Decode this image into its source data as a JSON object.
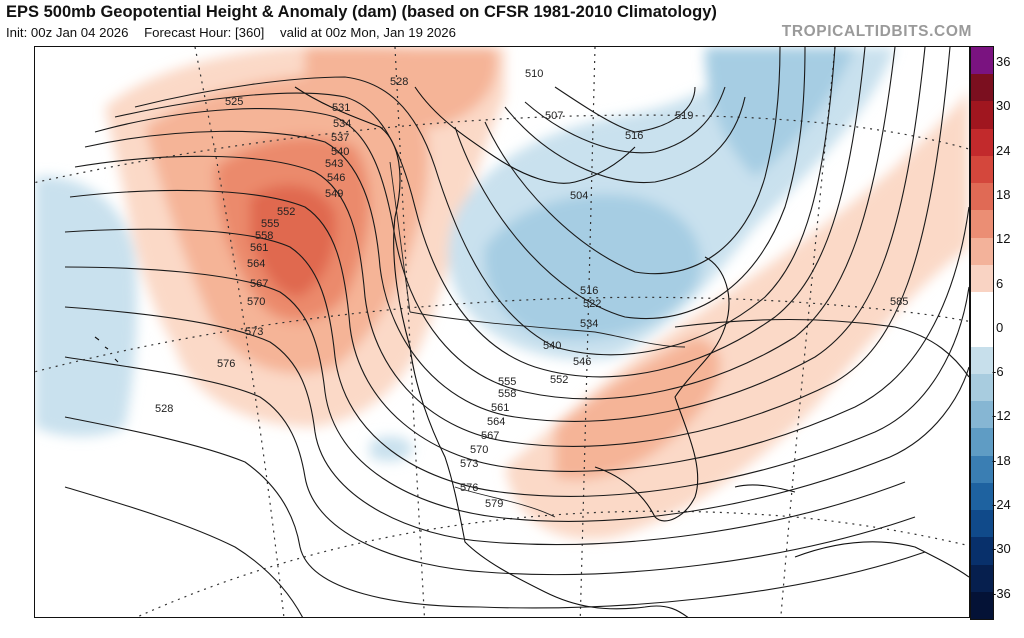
{
  "header": {
    "title": "EPS 500mb Geopotential Height & Anomaly (dam) (based on CFSR 1981-2010 Climatology)",
    "init": "Init: 00z Jan 04 2026",
    "forecast_hour": "Forecast Hour: [360]",
    "valid": "valid at 00z Mon, Jan 19 2026",
    "watermark": "TROPICALTIDBITS.COM"
  },
  "colorbar": {
    "tick_labels": [
      "36",
      "30",
      "24",
      "18",
      "12",
      "6",
      "0",
      "-6",
      "-12",
      "-18",
      "-24",
      "-30",
      "-36"
    ],
    "colors": [
      "#7a1380",
      "#7b0f1f",
      "#a0161f",
      "#c22a2c",
      "#d4473c",
      "#e06a55",
      "#eb8e74",
      "#f3b29a",
      "#f9d3c3",
      "#ffffff",
      "#ffffff",
      "#c7dfeb",
      "#a8ccdf",
      "#86b6d3",
      "#5f9cc4",
      "#3a7eb3",
      "#1e62a0",
      "#104a8a",
      "#08306b",
      "#061f4e",
      "#041236"
    ]
  },
  "contour_labels": [
    "504",
    "507",
    "510",
    "516",
    "516",
    "519",
    "522",
    "525",
    "528",
    "528",
    "531",
    "534",
    "534",
    "537",
    "540",
    "540",
    "543",
    "546",
    "546",
    "549",
    "552",
    "552",
    "555",
    "555",
    "558",
    "558",
    "561",
    "561",
    "564",
    "564",
    "567",
    "567",
    "570",
    "570",
    "573",
    "573",
    "576",
    "576",
    "579",
    "585"
  ],
  "anomaly_colors": {
    "warm_light": "#fbd9c7",
    "warm_mid": "#f5b497",
    "warm_strong": "#eb8a6c",
    "warm_core": "#e0694f",
    "cold_light": "#c9e1ee",
    "cold_mid": "#a6cde3",
    "cold_strong": "#88b9d8"
  }
}
